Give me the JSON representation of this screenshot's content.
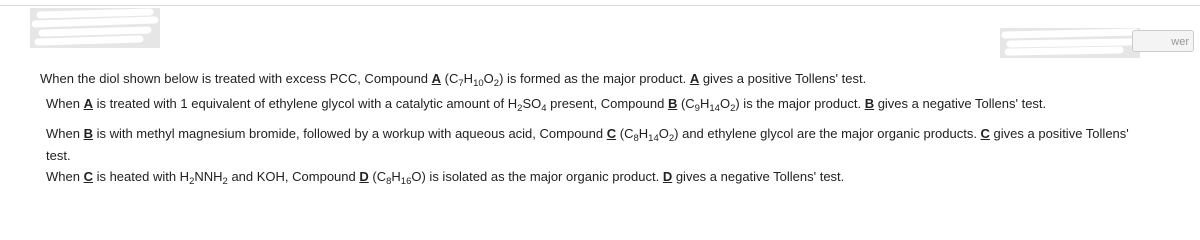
{
  "answer_button": "wer",
  "paragraphs": [
    [
      "When the diol shown below is treated with excess PCC, Compound ",
      "A",
      " (C",
      "7",
      "H",
      "10",
      "O",
      "2",
      ") is formed as the major product. ",
      "A",
      " gives a positive Tollens' test."
    ],
    [
      "When ",
      "A",
      " is treated with 1 equivalent of ethylene glycol with a catalytic amount of H",
      "2",
      "SO",
      "4",
      " present, Compound ",
      "B",
      " (C",
      "9",
      "H",
      "14",
      "O",
      "2",
      ") is the major product. ",
      "B",
      " gives a negative Tollens' test."
    ],
    [
      "When ",
      "B",
      " is with methyl magnesium bromide, followed by a workup with aqueous acid, Compound ",
      "C",
      " (C",
      "8",
      "H",
      "14",
      "O",
      "2",
      ") and ethylene glycol are the major organic products. ",
      "C",
      " gives a positive Tollens' test."
    ],
    [
      "When ",
      "C",
      " is heated with H",
      "2",
      "NNH",
      "2",
      " and KOH, Compound ",
      "D",
      " (C",
      "8",
      "H",
      "16",
      "O) is isolated as the major organic product. ",
      "D",
      " gives a negative Tollens' test."
    ]
  ]
}
